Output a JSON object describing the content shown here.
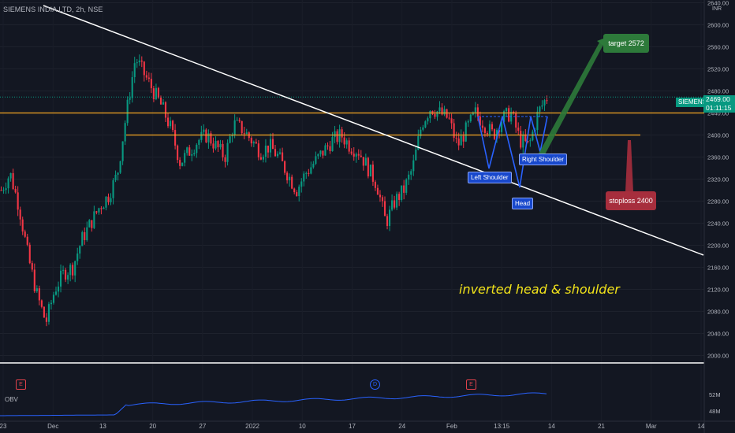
{
  "header": {
    "symbol_title": "SIEMENS INDIA LTD, 2h, NSE",
    "currency": "INR"
  },
  "price_tag": {
    "ticker": "SIEMENS",
    "price": "2469.00",
    "countdown": "01:11:15"
  },
  "annotations": {
    "target": "target 2572",
    "stoploss": "stoploss 2400",
    "pattern": "inverted head & shoulder",
    "left_shoulder": "Left Shoulder",
    "head": "Head",
    "right_shoulder": "Right Shoulder"
  },
  "indicator": {
    "name": "OBV",
    "y_ticks": [
      "52M",
      "48M"
    ],
    "events": [
      {
        "type": "earnings",
        "glyph": "E"
      },
      {
        "type": "dividend",
        "glyph": "D"
      },
      {
        "type": "earnings",
        "glyph": "E"
      }
    ]
  },
  "colors": {
    "background": "#131722",
    "up_candle": "#089981",
    "down_candle": "#f23645",
    "trendline": "#ffffff",
    "support_line": "#f5a623",
    "pattern_line": "#2962ff",
    "target_arrow": "#2d7a3a",
    "stop_arrow": "#a72e3d",
    "obv_line": "#2962ff"
  },
  "chart_data": {
    "type": "candlestick",
    "y_ticks": [
      2000,
      2040,
      2080,
      2120,
      2160,
      2200,
      2240,
      2280,
      2320,
      2360,
      2400,
      2440,
      2480,
      2520,
      2560,
      2600,
      2640
    ],
    "y_tick_labels": [
      "2000.00",
      "2040.00",
      "2080.00",
      "2120.00",
      "2160.00",
      "2200.00",
      "2240.00",
      "2280.00",
      "2320.00",
      "2360.00",
      "2400.00",
      "2440.00",
      "2480.00",
      "2520.00",
      "2560.00",
      "2600.00",
      "2640.00"
    ],
    "x_tick_labels": [
      "23",
      "Dec",
      "13",
      "20",
      "27",
      "2022",
      "10",
      "17",
      "24",
      "Feb",
      "13:15",
      "14",
      "21",
      "Mar",
      "14"
    ],
    "ylim": [
      1985,
      2645
    ],
    "last_price": 2469.0,
    "support_levels": [
      2440,
      2400
    ],
    "target": 2572,
    "stoploss": 2400,
    "close_path": [
      2300,
      2330,
      2270,
      2180,
      2110,
      2060,
      2120,
      2150,
      2160,
      2210,
      2240,
      2270,
      2290,
      2330,
      2440,
      2540,
      2510,
      2480,
      2450,
      2410,
      2350,
      2370,
      2390,
      2400,
      2380,
      2360,
      2420,
      2410,
      2390,
      2370,
      2380,
      2360,
      2330,
      2300,
      2330,
      2350,
      2370,
      2390,
      2400,
      2380,
      2370,
      2340,
      2310,
      2240,
      2280,
      2300,
      2340,
      2420,
      2450,
      2440,
      2430,
      2380,
      2410,
      2440,
      2420,
      2400,
      2430,
      2440,
      2390,
      2380,
      2440,
      2469
    ]
  }
}
